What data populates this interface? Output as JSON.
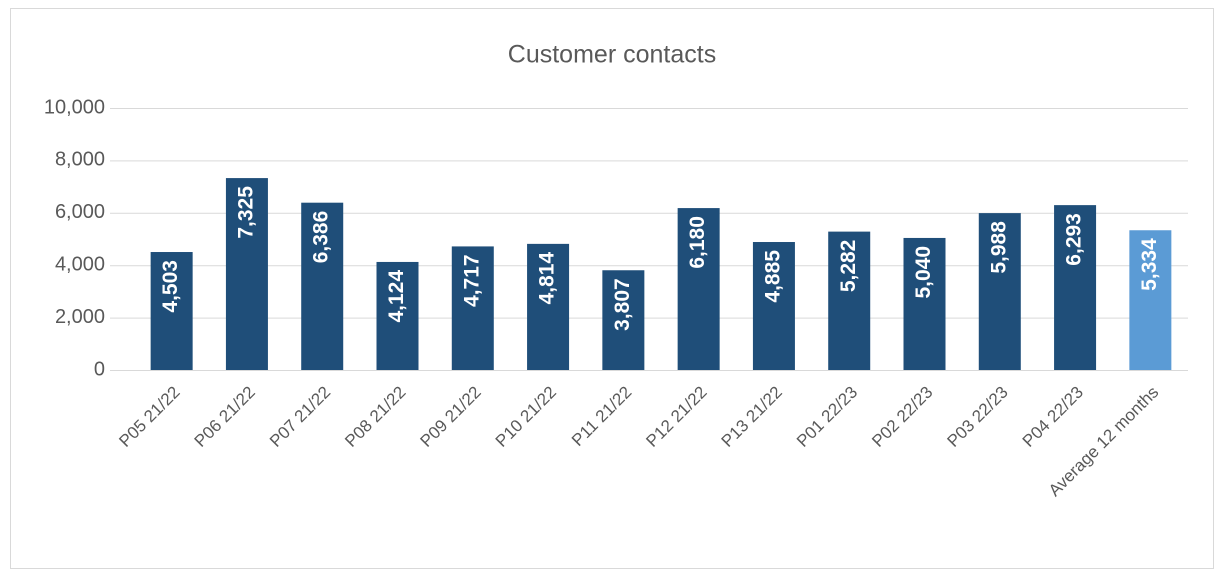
{
  "chart_data": {
    "type": "bar",
    "title": "Customer contacts",
    "categories": [
      "P05 21/22",
      "P06 21/22",
      "P07 21/22",
      "P08 21/22",
      "P09 21/22",
      "P10 21/22",
      "P11 21/22",
      "P12 21/22",
      "P13 21/22",
      "P01 22/23",
      "P02 22/23",
      "P03 22/23",
      "P04 22/23",
      "Average 12 months"
    ],
    "values": [
      4503,
      7325,
      6386,
      4124,
      4717,
      4814,
      3807,
      6180,
      4885,
      5282,
      5040,
      5988,
      6293,
      5334
    ],
    "value_labels": [
      "4,503",
      "7,325",
      "6,386",
      "4,124",
      "4,717",
      "4,814",
      "3,807",
      "6,180",
      "4,885",
      "5,282",
      "5,040",
      "5,988",
      "6,293",
      "5,334"
    ],
    "colors": [
      "#1f4e79",
      "#1f4e79",
      "#1f4e79",
      "#1f4e79",
      "#1f4e79",
      "#1f4e79",
      "#1f4e79",
      "#1f4e79",
      "#1f4e79",
      "#1f4e79",
      "#1f4e79",
      "#1f4e79",
      "#1f4e79",
      "#5b9bd5"
    ],
    "ylim": [
      0,
      10000
    ],
    "yticks": [
      0,
      {
        "value": 2000,
        "label": "2,000"
      },
      {
        "value": 4000,
        "label": "4,000"
      },
      {
        "value": 6000,
        "label": "6,000"
      },
      {
        "value": 8000,
        "label": "8,000"
      },
      {
        "value": 10000,
        "label": "10,000"
      }
    ],
    "grid": true
  }
}
